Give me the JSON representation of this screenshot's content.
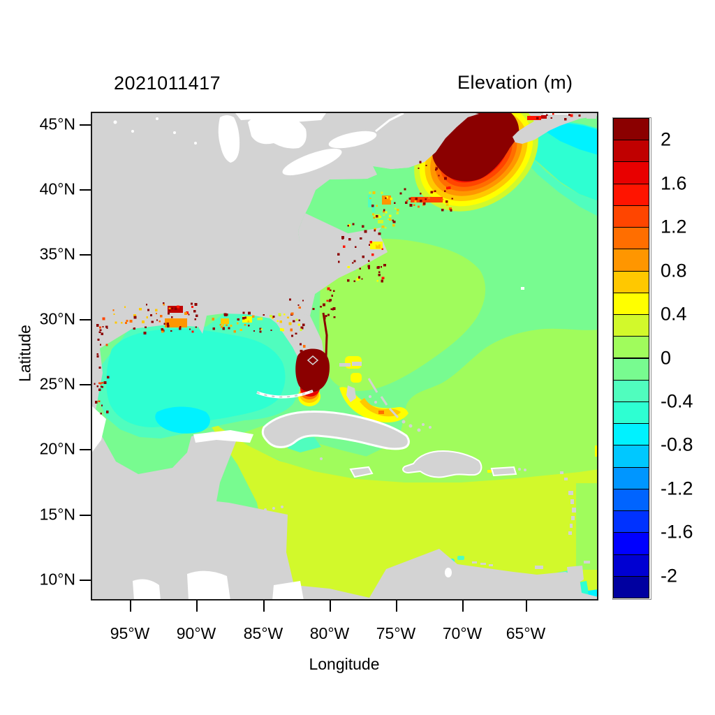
{
  "header": {
    "left_title": "2021011417",
    "right_title": "Elevation (m)"
  },
  "chart_data": {
    "type": "heatmap",
    "subtype": "filled_contour_geographic_map",
    "title": "2021011417",
    "colorbar_title": "Elevation (m)",
    "xlabel": "Longitude",
    "ylabel": "Latitude",
    "x_tick_labels": [
      "95°W",
      "90°W",
      "85°W",
      "80°W",
      "75°W",
      "70°W",
      "65°W"
    ],
    "y_tick_labels": [
      "45°N",
      "40°N",
      "35°N",
      "30°N",
      "25°N",
      "20°N",
      "15°N",
      "10°N"
    ],
    "x_range_longitude": [
      "98°W",
      "59.6°W"
    ],
    "y_range_latitude": [
      "8.4°N",
      "46°N"
    ],
    "grid": false,
    "legend_position": "right-colorbar",
    "colorbar_tick_labels": [
      "2",
      "1.6",
      "1.2",
      "0.8",
      "0.4",
      "0",
      "-0.4",
      "-0.8",
      "-1.2",
      "-1.6",
      "-2"
    ],
    "band_interval_m": 0.2,
    "band_edges_top_to_bottom": [
      2.2,
      2.0,
      1.8,
      1.6,
      1.4,
      1.2,
      1.0,
      0.8,
      0.6,
      0.4,
      0.2,
      0.0,
      -0.2,
      -0.4,
      -0.6,
      -0.8,
      -1.0,
      -1.2,
      -1.4,
      -1.6,
      -1.8,
      -2.0,
      -2.2
    ],
    "palette_top_to_bottom": [
      "#8b0000",
      "#c00000",
      "#e80000",
      "#ff1400",
      "#ff4500",
      "#ff6e00",
      "#ff9600",
      "#ffc800",
      "#ffff00",
      "#d2f92b",
      "#a0fc5c",
      "#78fb90",
      "#50fdbe",
      "#2effd2",
      "#00f2ff",
      "#00c8ff",
      "#0096ff",
      "#0064ff",
      "#0032ff",
      "#0000ff",
      "#0000d2",
      "#0000a0"
    ],
    "land_color": "#d3d3d3",
    "no_data_color": "#ffffff",
    "regions": [
      {
        "name": "Gulf of Maine / Bay of Fundy surge maximum",
        "approx_value_m": "core > 2.2 with concentric 0.4 to 2.2 bands"
      },
      {
        "name": "South Florida / Lake Okeechobee area",
        "approx_value_m": "core > 2.2 with 0.6 to 1.8 fringe"
      },
      {
        "name": "Northern Gulf coast, Texas and Mexico coastal cells",
        "approx_value_m": "0.8 to 2.2 scattered flooded cells"
      },
      {
        "name": "Chesapeake Bay / Carolina sounds",
        "approx_value_m": "0.4 to 1.2"
      },
      {
        "name": "Great Bahama Bank arc",
        "approx_value_m": "0.4 to 1.0"
      },
      {
        "name": "Open Atlantic",
        "approx_value_m": "-0.2 to 0.2"
      },
      {
        "name": "Southern Caribbean Sea",
        "approx_value_m": "0.2 to 0.4"
      },
      {
        "name": "Gulf of Mexico",
        "approx_value_m": "-0.8 to -0.2"
      },
      {
        "name": "Scotian Shelf",
        "approx_value_m": "-0.8 to -0.2"
      },
      {
        "name": "Continental land",
        "approx_value_m": "masked gray"
      },
      {
        "name": "Lakes / Pacific (outside model domain)",
        "approx_value_m": "no data, white"
      }
    ]
  }
}
